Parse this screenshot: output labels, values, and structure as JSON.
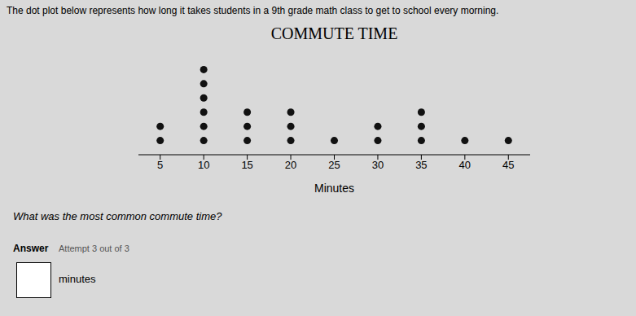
{
  "chart_data": {
    "type": "dot",
    "title": "COMMUTE TIME",
    "xlabel": "Minutes",
    "x": [
      5,
      10,
      15,
      20,
      25,
      30,
      35,
      40,
      45
    ],
    "values": [
      2,
      6,
      3,
      3,
      1,
      2,
      3,
      1,
      1
    ],
    "color": "#111111",
    "marker": "circle",
    "xlim": [
      2.5,
      47.5
    ],
    "xticks": [
      5,
      10,
      15,
      20,
      25,
      30,
      35,
      40,
      45
    ],
    "tick_labels": "x",
    "annotations": [
      "The dot plot below represents how long it takes students in a 9th grade math class to get to school every morning.",
      "What was the most common commute time?",
      "Answer",
      "Attempt 3 out of 3",
      "minutes"
    ]
  }
}
